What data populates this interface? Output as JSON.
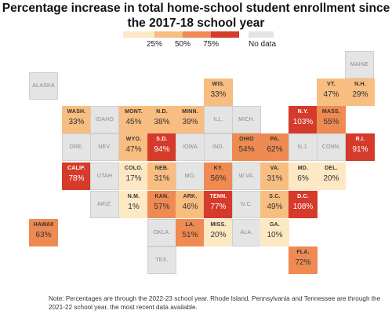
{
  "title": "Percentage increase in total home-school student enrollment since the 2017-18 school year",
  "legend": {
    "ticks": [
      "25%",
      "50%",
      "75%"
    ],
    "colors": [
      "#fde8c4",
      "#f8bd80",
      "#ee8a52",
      "#d53a2a"
    ],
    "no_data_label": "No data",
    "no_data_color": "#e4e4e4"
  },
  "states": [
    {
      "abbr": "MAINE",
      "value": null
    },
    {
      "abbr": "ALASKA",
      "value": null
    },
    {
      "abbr": "WIS.",
      "value": "33%"
    },
    {
      "abbr": "VT.",
      "value": "47%"
    },
    {
      "abbr": "N.H.",
      "value": "29%"
    },
    {
      "abbr": "WASH.",
      "value": "33%"
    },
    {
      "abbr": "IDAHO",
      "value": null
    },
    {
      "abbr": "MONT.",
      "value": "45%"
    },
    {
      "abbr": "N.D.",
      "value": "38%"
    },
    {
      "abbr": "MINN.",
      "value": "39%"
    },
    {
      "abbr": "ILL.",
      "value": null
    },
    {
      "abbr": "MICH.",
      "value": null
    },
    {
      "abbr": "N.Y.",
      "value": "103%"
    },
    {
      "abbr": "MASS.",
      "value": "55%"
    },
    {
      "abbr": "ORE.",
      "value": null
    },
    {
      "abbr": "NEV.",
      "value": null
    },
    {
      "abbr": "WYO.",
      "value": "47%"
    },
    {
      "abbr": "S.D.",
      "value": "94%"
    },
    {
      "abbr": "IOWA",
      "value": null
    },
    {
      "abbr": "IND.",
      "value": null
    },
    {
      "abbr": "OHIO",
      "value": "54%"
    },
    {
      "abbr": "PA.",
      "value": "62%"
    },
    {
      "abbr": "N.J.",
      "value": null
    },
    {
      "abbr": "CONN.",
      "value": null
    },
    {
      "abbr": "R.I.",
      "value": "91%"
    },
    {
      "abbr": "CALIF.",
      "value": "78%"
    },
    {
      "abbr": "UTAH",
      "value": null
    },
    {
      "abbr": "COLO.",
      "value": "17%"
    },
    {
      "abbr": "NEB.",
      "value": "31%"
    },
    {
      "abbr": "MO.",
      "value": null
    },
    {
      "abbr": "KY.",
      "value": "56%"
    },
    {
      "abbr": "W.VA.",
      "value": null
    },
    {
      "abbr": "VA.",
      "value": "31%"
    },
    {
      "abbr": "MD.",
      "value": "6%"
    },
    {
      "abbr": "DEL.",
      "value": "20%"
    },
    {
      "abbr": "ARIZ.",
      "value": null
    },
    {
      "abbr": "N.M.",
      "value": "1%"
    },
    {
      "abbr": "KAN.",
      "value": "57%"
    },
    {
      "abbr": "ARK.",
      "value": "46%"
    },
    {
      "abbr": "TENN.",
      "value": "77%"
    },
    {
      "abbr": "N.C.",
      "value": null
    },
    {
      "abbr": "S.C.",
      "value": "49%"
    },
    {
      "abbr": "D.C.",
      "value": "108%"
    },
    {
      "abbr": "HAWAII",
      "value": "63%"
    },
    {
      "abbr": "OKLA.",
      "value": null
    },
    {
      "abbr": "LA.",
      "value": "51%"
    },
    {
      "abbr": "MISS.",
      "value": "20%"
    },
    {
      "abbr": "ALA.",
      "value": null
    },
    {
      "abbr": "GA.",
      "value": "10%"
    },
    {
      "abbr": "TEX.",
      "value": null
    },
    {
      "abbr": "FLA.",
      "value": "72%"
    }
  ],
  "note": "Note: Percentages are through the 2022-23 school year. Rhode Island, Pennsylvania and Tennessee are through the 2021-22 school year, the most recent data available."
}
